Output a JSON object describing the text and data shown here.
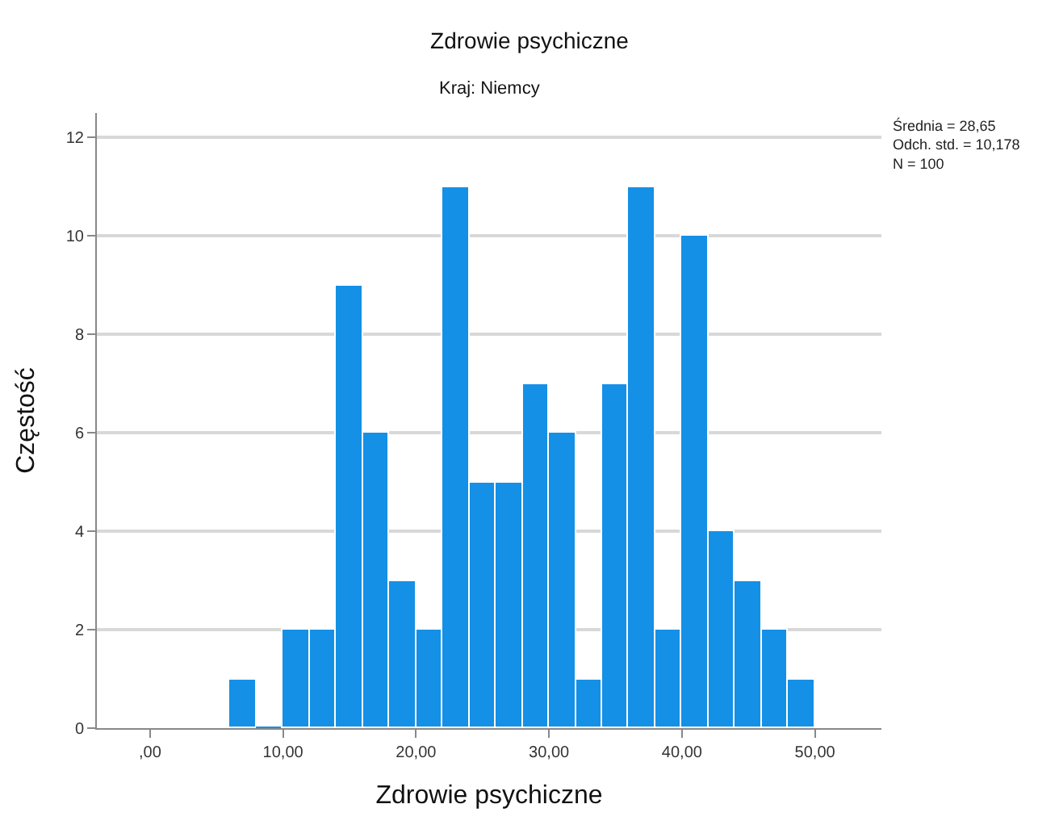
{
  "chart_data": {
    "type": "histogram",
    "title": "Zdrowie psychiczne",
    "subtitle": "Kraj: Niemcy",
    "xlabel": "Zdrowie psychiczne",
    "ylabel": "Częstość",
    "bins": [
      6,
      8,
      10,
      12,
      14,
      16,
      18,
      20,
      22,
      24,
      26,
      28,
      30,
      32,
      34,
      36,
      38,
      40,
      42,
      44,
      46,
      48,
      50
    ],
    "values": [
      1,
      0,
      2,
      2,
      9,
      6,
      3,
      2,
      11,
      5,
      5,
      7,
      6,
      1,
      7,
      11,
      2,
      10,
      4,
      3,
      2,
      1
    ],
    "color": "#1490e6",
    "xlim": [
      -4,
      55
    ],
    "xticks": [
      {
        "value": 0,
        "label": ",00"
      },
      {
        "value": 10,
        "label": "10,00"
      },
      {
        "value": 20,
        "label": "20,00"
      },
      {
        "value": 30,
        "label": "30,00"
      },
      {
        "value": 40,
        "label": "40,00"
      },
      {
        "value": 50,
        "label": "50,00"
      }
    ],
    "ylim": [
      0,
      12.5
    ],
    "yticks": [
      0,
      2,
      4,
      6,
      8,
      10,
      12
    ],
    "grid": "y",
    "annotations": [
      "Średnia = 28,65",
      "Odch. std. = 10,178",
      "N = 100"
    ]
  }
}
